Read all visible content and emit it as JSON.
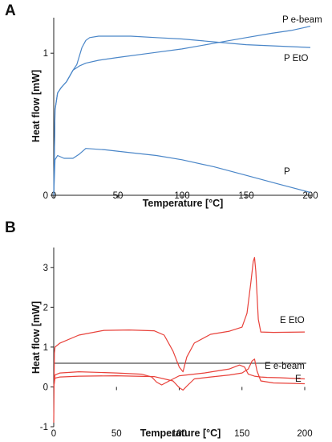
{
  "chart_data": [
    {
      "panel": "A",
      "type": "line",
      "title": "",
      "xlabel": "Temperature [°C]",
      "ylabel": "Heat flow [mW]",
      "xlim": [
        0,
        200
      ],
      "ylim": [
        0,
        1.25
      ],
      "xticks": [
        0,
        50,
        100,
        150,
        200
      ],
      "yticks": [
        0,
        1
      ],
      "grid": false,
      "color": "#4a86c8",
      "series": [
        {
          "name": "P e-beam",
          "x": [
            0,
            1,
            3,
            6,
            10,
            15,
            20,
            25,
            35,
            50,
            75,
            100,
            125,
            150,
            170,
            185,
            195,
            200
          ],
          "y": [
            0.0,
            0.6,
            0.72,
            0.76,
            0.8,
            0.88,
            0.91,
            0.93,
            0.95,
            0.97,
            1.0,
            1.03,
            1.07,
            1.11,
            1.14,
            1.16,
            1.18,
            1.19
          ]
        },
        {
          "name": "P EtO",
          "x": [
            0,
            1,
            3,
            6,
            10,
            15,
            18,
            22,
            25,
            28,
            35,
            45,
            60,
            80,
            100,
            125,
            150,
            175,
            200
          ],
          "y": [
            0.0,
            0.6,
            0.72,
            0.76,
            0.8,
            0.88,
            0.92,
            1.04,
            1.09,
            1.11,
            1.12,
            1.12,
            1.12,
            1.11,
            1.1,
            1.08,
            1.06,
            1.05,
            1.04
          ]
        },
        {
          "name": "P",
          "x": [
            0,
            1,
            3,
            8,
            15,
            20,
            25,
            40,
            60,
            80,
            100,
            125,
            150,
            175,
            200
          ],
          "y": [
            0.0,
            0.25,
            0.28,
            0.26,
            0.26,
            0.29,
            0.33,
            0.32,
            0.3,
            0.28,
            0.25,
            0.2,
            0.14,
            0.08,
            0.02
          ]
        }
      ]
    },
    {
      "panel": "B",
      "type": "line",
      "title": "",
      "xlabel": "Temperature [°C]",
      "ylabel": "Heat flow [mW]",
      "xlim": [
        0,
        200
      ],
      "ylim": [
        -1,
        3.5
      ],
      "xticks": [
        0,
        50,
        100,
        150,
        200
      ],
      "yticks": [
        -1,
        0,
        1,
        2,
        3
      ],
      "grid": false,
      "color": "#e8413a",
      "series": [
        {
          "name": "E EtO",
          "x": [
            0,
            0.5,
            1,
            5,
            20,
            40,
            60,
            80,
            88,
            95,
            100,
            103,
            106,
            112,
            125,
            140,
            150,
            154,
            157,
            159,
            160,
            161,
            163,
            165,
            175,
            200
          ],
          "y": [
            -0.9,
            0.85,
            1.0,
            1.1,
            1.3,
            1.42,
            1.43,
            1.41,
            1.3,
            0.9,
            0.5,
            0.38,
            0.75,
            1.1,
            1.32,
            1.4,
            1.5,
            1.85,
            2.6,
            3.15,
            3.25,
            2.9,
            1.7,
            1.38,
            1.37,
            1.38
          ]
        },
        {
          "name": "E e-beam",
          "x": [
            0,
            1,
            5,
            20,
            50,
            70,
            78,
            82,
            86,
            92,
            100,
            120,
            140,
            148,
            152,
            155,
            160,
            165,
            170,
            180,
            200
          ],
          "y": [
            0,
            0.3,
            0.35,
            0.38,
            0.35,
            0.32,
            0.25,
            0.12,
            0.05,
            0.15,
            0.28,
            0.35,
            0.45,
            0.55,
            0.5,
            0.32,
            0.27,
            0.25,
            0.24,
            0.23,
            0.2
          ]
        },
        {
          "name": "E",
          "x": [
            0,
            1,
            5,
            20,
            50,
            80,
            95,
            100,
            103,
            106,
            112,
            125,
            140,
            150,
            155,
            158,
            160,
            162,
            165,
            175,
            200
          ],
          "y": [
            0,
            0.22,
            0.25,
            0.27,
            0.28,
            0.26,
            0.15,
            -0.02,
            -0.08,
            0.02,
            0.2,
            0.25,
            0.3,
            0.35,
            0.45,
            0.65,
            0.7,
            0.4,
            0.15,
            0.1,
            0.08
          ]
        }
      ]
    }
  ]
}
